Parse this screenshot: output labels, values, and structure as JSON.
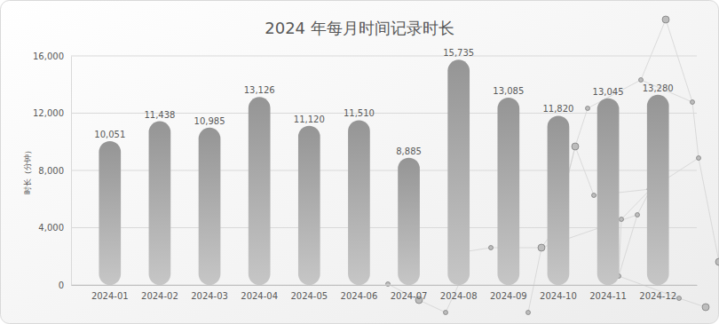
{
  "chart_data": {
    "type": "bar",
    "title": "2024 年每月时间记录时长",
    "y_label": "时长（分钟）",
    "categories": [
      "2024-01",
      "2024-02",
      "2024-03",
      "2024-04",
      "2024-05",
      "2024-06",
      "2024-07",
      "2024-08",
      "2024-09",
      "2024-10",
      "2024-11",
      "2024-12"
    ],
    "values": [
      10051,
      11438,
      10985,
      13126,
      11120,
      11510,
      8885,
      15735,
      13085,
      11820,
      13045,
      13280
    ],
    "value_labels": [
      "10,051",
      "11,438",
      "10,985",
      "13,126",
      "11,120",
      "11,510",
      "8,885",
      "15,735",
      "13,085",
      "11,820",
      "13,045",
      "13,280"
    ],
    "color": "#a6a6a6",
    "ylim": [
      0,
      16000
    ],
    "yticks": [
      0,
      {
        "value": 4000,
        "label": "4,000"
      },
      {
        "value": 8000,
        "label": "8,000"
      },
      {
        "value": 12000,
        "label": "12,000"
      },
      {
        "value": 16000,
        "label": "16,000"
      }
    ],
    "grid": true,
    "data_labels": true
  }
}
